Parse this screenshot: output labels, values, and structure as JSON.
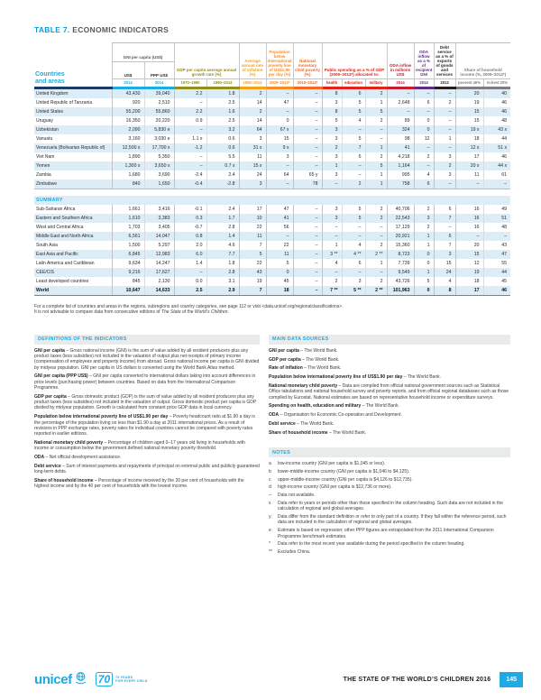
{
  "header": {
    "table_number": "TABLE 7.",
    "title": "ECONOMIC INDICATORS"
  },
  "colors": {
    "accent": "#1cabe2",
    "countries_bar": "#1b3a64",
    "stripe": "#dcedf8"
  },
  "table": {
    "countries_line1": "Countries",
    "countries_line2": "and areas",
    "groups": [
      {
        "label": "GNI per capita (US$)",
        "color": "#58595b",
        "bar": "#1cabe2",
        "year_color": "#1cabe2",
        "sub": [
          "US$",
          "PPP US$"
        ],
        "years": [
          "2014",
          "2014"
        ]
      },
      {
        "label": "GDP per capita average annual growth rate (%)",
        "color": "#928e20",
        "bar": "#928e20",
        "year_color": "#928e20",
        "years": [
          "1970–1990",
          "1990–2014"
        ]
      },
      {
        "label": "Average annual rate of inflation (%)",
        "color": "#f1a31c",
        "bar": "#f1a31c",
        "year_color": "#f1a31c",
        "years": [
          "1990–2014"
        ]
      },
      {
        "label": "Population below international poverty line of US$1.90 per day (%)",
        "color": "#f68c28",
        "bar": "#f68c28",
        "year_color": "#f68c28",
        "years": [
          "2009–2013*"
        ]
      },
      {
        "label": "National monetary child poverty (%)",
        "color": "#f26a25",
        "bar": "#f26a25",
        "year_color": "#f26a25",
        "years": [
          "2010–2014*"
        ]
      },
      {
        "label": "Public spending as a % of GDP (2009–2013*) allocated to:",
        "color": "#e2231a",
        "bar": "#e2231a",
        "year_color": "#e2231a",
        "years": [
          "health",
          "education",
          "military"
        ]
      },
      {
        "label": "ODA inflow in millions US$",
        "color": "#c32031",
        "bar": "#c32031",
        "year_color": "#c32031",
        "years": [
          "2014"
        ]
      },
      {
        "label": "ODA inflow as a % of recipient GNI",
        "color": "#5f2d84",
        "bar": "#5f2d84",
        "year_color": "#5f2d84",
        "years": [
          "2014"
        ]
      },
      {
        "label": "Debt service as a % of exports of goods and services",
        "color": "#231f20",
        "bar": "#231f20",
        "year_color": "#231f20",
        "years": [
          "2013"
        ]
      },
      {
        "label": "Share of household income (%, 2009–2013*)",
        "color": "#7d7e81",
        "bar": "#7d7e81",
        "year_color": "#7d7e81",
        "years": [
          "poorest 40%",
          "richest 20%"
        ]
      }
    ],
    "rows": [
      [
        "United Kingdom",
        "43,430",
        "39,040",
        "2.2",
        "1.8",
        "2",
        "–",
        "–",
        "8",
        "6",
        "2",
        "–",
        "–",
        "–",
        "20",
        "40"
      ],
      [
        "United Republic of Tanzania",
        "920",
        "2,510",
        "–",
        "2.5",
        "14",
        "47",
        "–",
        "3",
        "5",
        "1",
        "2,648",
        "6",
        "2",
        "19",
        "46"
      ],
      [
        "United States",
        "55,200",
        "55,860",
        "2.2",
        "1.6",
        "2",
        "–",
        "–",
        "8",
        "5",
        "5",
        "–",
        "–",
        "–",
        "15",
        "46"
      ],
      [
        "Uruguay",
        "16,350",
        "20,220",
        "0.9",
        "2.5",
        "14",
        "0",
        "–",
        "5",
        "4",
        "2",
        "89",
        "0",
        "–",
        "15",
        "48"
      ],
      [
        "Uzbekistan",
        "2,090",
        "5,830 e",
        "–",
        "3.2",
        "64",
        "67 x",
        "–",
        "3",
        "–",
        "–",
        "324",
        "0",
        "–",
        "19 x",
        "43 x"
      ],
      [
        "Vanuatu",
        "3,160",
        "3,030 e",
        "1.1 x",
        "0.6",
        "3",
        "15",
        "–",
        "3",
        "5",
        "–",
        "98",
        "12",
        "1",
        "18",
        "44"
      ],
      [
        "Venezuela (Bolivarian Republic of)",
        "12,500 x",
        "17,700 x",
        "-1.2",
        "0.6",
        "31 x",
        "9 x",
        "–",
        "2",
        "7",
        "1",
        "41",
        "–",
        "–",
        "12 x",
        "51 x"
      ],
      [
        "Viet Nam",
        "1,890",
        "5,350",
        "–",
        "5.5",
        "11",
        "3",
        "–",
        "3",
        "6",
        "2",
        "4,218",
        "2",
        "3",
        "17",
        "46"
      ],
      [
        "Yemen",
        "1,300 x",
        "3,650 x",
        "–",
        "0.7 x",
        "15 x",
        "–",
        "–",
        "1",
        "–",
        "5",
        "1,164",
        "–",
        "2",
        "20 x",
        "44 x"
      ],
      [
        "Zambia",
        "1,680",
        "3,690",
        "-2.4",
        "2.4",
        "24",
        "64",
        "65 y",
        "3",
        "–",
        "1",
        "995",
        "4",
        "3",
        "11",
        "61"
      ],
      [
        "Zimbabwe",
        "840",
        "1,650",
        "-0.4",
        "-2.8",
        "3",
        "–",
        "78",
        "–",
        "2",
        "1",
        "758",
        "6",
        "–",
        "–",
        "–"
      ]
    ],
    "summary_label": "SUMMARY",
    "summary_rows": [
      [
        "Sub-Saharan Africa",
        "1,661",
        "3,416",
        "-0.1",
        "2.4",
        "17",
        "47",
        "–",
        "3",
        "5",
        "2",
        "40,706",
        "2",
        "6",
        "16",
        "49"
      ],
      [
        "Eastern and Southern Africa",
        "1,610",
        "3,383",
        "0.3",
        "1.7",
        "10",
        "41",
        "–",
        "3",
        "5",
        "2",
        "22,543",
        "3",
        "7",
        "16",
        "51"
      ],
      [
        "West and Central Africa",
        "1,703",
        "3,405",
        "-0.7",
        "2.8",
        "22",
        "56",
        "–",
        "–",
        "–",
        "–",
        "17,129",
        "2",
        "–",
        "16",
        "48"
      ],
      [
        "Middle East and North Africa",
        "6,561",
        "14,047",
        "0.8",
        "1.4",
        "11",
        "–",
        "–",
        "–",
        "–",
        "–",
        "20,921",
        "1",
        "6",
        "–",
        "–"
      ],
      [
        "South Asia",
        "1,500",
        "5,297",
        "2.0",
        "4.6",
        "7",
        "22",
        "–",
        "1",
        "4",
        "2",
        "15,360",
        "1",
        "7",
        "20",
        "43"
      ],
      [
        "East Asia and Pacific",
        "6,845",
        "12,983",
        "6.0",
        "7.7",
        "5",
        "11",
        "–",
        "3 **",
        "4 **",
        "2 **",
        "8,723",
        "0",
        "3",
        "15",
        "47"
      ],
      [
        "Latin America and Caribbean",
        "9,634",
        "14,247",
        "1.4",
        "1.8",
        "22",
        "5",
        "–",
        "4",
        "6",
        "1",
        "7,739",
        "0",
        "15",
        "12",
        "55"
      ],
      [
        "CEE/CIS",
        "9,216",
        "17,627",
        "–",
        "2.8",
        "43",
        "0",
        "–",
        "–",
        "–",
        "–",
        "9,549",
        "1",
        "24",
        "19",
        "44"
      ],
      [
        "Least developed countries",
        "845",
        "2,130",
        "0.0",
        "3.1",
        "19",
        "45",
        "–",
        "2",
        "3",
        "2",
        "43,726",
        "5",
        "4",
        "18",
        "45"
      ],
      [
        "World",
        "10,647",
        "14,633",
        "2.5",
        "2.9",
        "7",
        "18",
        "–",
        "7 **",
        "5 **",
        "2 **",
        "101,963",
        "0",
        "8",
        "17",
        "46"
      ]
    ]
  },
  "prenote": {
    "line1": "For a complete list of countries and areas in the regions, subregions and country categories, see page 112 or visit <data.unicef.org/regionalclassifications>.",
    "line2": "It is not advisable to compare data from consecutive editions of ",
    "line2_italic": "The State of the World’s Children."
  },
  "definitions": {
    "heading": "DEFINITIONS OF THE INDICATORS",
    "items": [
      {
        "term": "GNI per capita",
        "text": " – Gross national income (GNI) is the sum of value added by all resident producers plus any product taxes (less subsidies) not included in the valuation of output plus net receipts of primary income (compensation of employees and property income) from abroad. Gross national income per capita is GNI divided by midyear population. GNI per capita in US dollars is converted using the World Bank Atlas method."
      },
      {
        "term": "GNI per capita (PPP US$)",
        "text": " – GNI per capita converted to international dollars taking into account differences in price levels (purchasing power) between countries. Based on data from the International Comparison Programme."
      },
      {
        "term": "GDP per capita",
        "text": " – Gross domestic product (GDP) is the sum of value added by all resident producers plus any product taxes (less subsidies) not included in the valuation of output. Gross domestic product per capita is GDP divided by midyear population. Growth is calculated from constant price GDP data in local currency."
      },
      {
        "term": "Population below international poverty line of US$1.90 per day",
        "text": " – Poverty headcount ratio at $1.90 a day is the percentage of the population living on less than $1.90 a day at 2011 international prices. As a result of revisions in PPP exchange rates, poverty rates for individual countries cannot be compared with poverty rates reported in earlier editions."
      },
      {
        "term": "National monetary child poverty",
        "text": " – Percentage of children aged 0–17 years old living in households with income or consumption below the government defined national monetary poverty threshold."
      },
      {
        "term": "ODA",
        "text": " – Net official development assistance."
      },
      {
        "term": "Debt service",
        "text": " – Sum of interest payments and repayments of principal on external public and publicly guaranteed long-term debts."
      },
      {
        "term": "Share of household income",
        "text": " – Percentage of income received by the 20 per cent of households with the highest income and by the 40 per cent of households with the lowest income."
      }
    ]
  },
  "sources": {
    "heading": "MAIN DATA SOURCES",
    "items": [
      {
        "term": "GNI per capita",
        "text": " – The World Bank."
      },
      {
        "term": "GDP per capita",
        "text": " – The World Bank."
      },
      {
        "term": "Rate of inflation",
        "text": " – The World Bank."
      },
      {
        "term": "Population below international poverty line of US$1.90 per day",
        "text": " – The World Bank."
      },
      {
        "term": "National monetary child poverty",
        "text": " – Data are compiled from official national government sources such as Statistical Office tabulations and national household survey and poverty reports, and from official regional databases such as those compiled by Eurostat. National estimates are based on representative household income or expenditure surveys."
      },
      {
        "term": "Spending on health, education and military",
        "text": " – The World Bank."
      },
      {
        "term": "ODA",
        "text": " – Organisation for Economic Co-operation and Development."
      },
      {
        "term": "Debt service",
        "text": " – The World Bank."
      },
      {
        "term": "Share of household income",
        "text": " – The World Bank."
      }
    ]
  },
  "notes": {
    "heading": "NOTES",
    "items": [
      {
        "symbol": "a",
        "text": "low-income country (GNI per capita is $1,045 or less)."
      },
      {
        "symbol": "b",
        "text": "lower-middle-income country (GNI per capita is $1,046 to $4,125)."
      },
      {
        "symbol": "c",
        "text": "upper-middle-income country (GNI per capita is $4,126 to $12,735)."
      },
      {
        "symbol": "d",
        "text": "high-income country (GNI per capita is $12,736 or more)."
      },
      {
        "symbol": "–",
        "text": "Data not available."
      },
      {
        "symbol": "x",
        "text": "Data refer to years or periods other than those specified in the column heading. Such data are not included in the calculation of regional and global averages."
      },
      {
        "symbol": "y",
        "text": "Data differ from the standard definition or refer to only part of a country. If they fall within the reference period, such data are included in the calculation of regional and global averages."
      },
      {
        "symbol": "e",
        "text": "Estimate is based on regression; other PPP figures are extrapolated from the 2011 International Comparison Programme benchmark estimates."
      },
      {
        "symbol": "*",
        "text": "Data refer to the most recent year available during the period specified in the column heading."
      },
      {
        "symbol": "**",
        "text": "Excludes China."
      }
    ]
  },
  "footer": {
    "logo_text": "unicef",
    "badge_number": "70",
    "badge_line1": "70 YEARS",
    "badge_line2": "FOR EVERY CHILD",
    "report_title": "THE STATE OF THE WORLD’S CHILDREN 2016",
    "page_number": "145"
  }
}
